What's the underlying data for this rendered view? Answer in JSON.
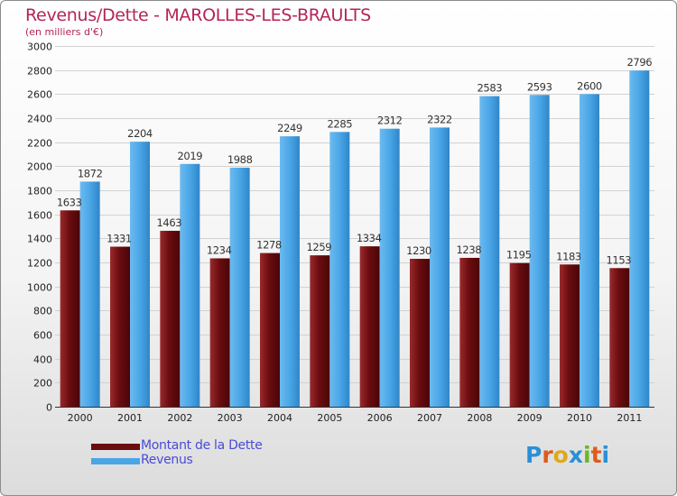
{
  "header": {
    "title": "Revenus/Dette - MAROLLES-LES-BRAULTS",
    "subtitle": "(en milliers d'€)"
  },
  "legend": {
    "debt_label": "Montant de la Dette",
    "revenue_label": "Revenus"
  },
  "logo": {
    "text": "Proxiti"
  },
  "colors": {
    "debt": "#6b0d10",
    "revenue": "#4aa6e6",
    "title": "#b4245a"
  },
  "chart_data": {
    "type": "bar",
    "categories": [
      "2000",
      "2001",
      "2002",
      "2003",
      "2004",
      "2005",
      "2006",
      "2007",
      "2008",
      "2009",
      "2010",
      "2011"
    ],
    "series": [
      {
        "name": "Montant de la Dette",
        "values": [
          1633,
          1331,
          1463,
          1234,
          1278,
          1259,
          1334,
          1230,
          1238,
          1195,
          1183,
          1153
        ],
        "labels": [
          "1633",
          "1331",
          "1463",
          "1234",
          "1278",
          "1259",
          "1334",
          "1230",
          "1238",
          "1195",
          "1183",
          "1153"
        ]
      },
      {
        "name": "Revenus",
        "values": [
          1872,
          2204,
          2019,
          1988,
          2249,
          2285,
          2312,
          2322,
          2583,
          2593,
          2600,
          2796
        ],
        "labels": [
          "1872",
          "2204",
          "2019",
          "1988",
          "2249",
          "2285",
          "2312",
          "2322",
          "2583",
          "2593",
          "2600",
          "2796"
        ]
      }
    ],
    "title": "Revenus/Dette - MAROLLES-LES-BRAULTS",
    "subtitle": "(en milliers d'€)",
    "ylim": [
      0,
      3000
    ],
    "yticks": [
      0,
      200,
      400,
      600,
      800,
      1000,
      1200,
      1400,
      1600,
      1800,
      2000,
      2200,
      2400,
      2600,
      2800,
      3000
    ],
    "grid": true,
    "legend_position": "bottom-left"
  }
}
